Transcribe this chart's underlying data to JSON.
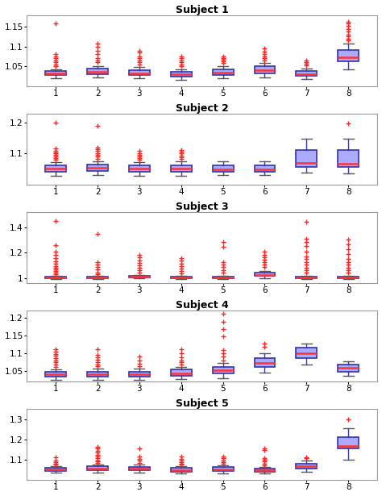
{
  "box_facecolor": "#aaaaff",
  "box_edgecolor": "#3333aa",
  "median_color": "#ff3333",
  "whisker_color": "#555555",
  "flier_color": "#ff2222",
  "subject_data": [
    {
      "label": "Subject 1",
      "ylim": [
        1.0,
        1.18
      ],
      "yticks": [
        1.05,
        1.1,
        1.15
      ],
      "ytick_labels": [
        "1.05",
        "1.1",
        "1.15"
      ],
      "groups": [
        {
          "q1": 1.028,
          "median": 1.032,
          "q3": 1.038,
          "whislo": 1.02,
          "whishi": 1.042,
          "fliers": [
            1.05,
            1.055,
            1.06,
            1.065,
            1.07,
            1.075,
            1.08,
            1.158
          ]
        },
        {
          "q1": 1.03,
          "median": 1.036,
          "q3": 1.044,
          "whislo": 1.022,
          "whishi": 1.05,
          "fliers": [
            1.06,
            1.065,
            1.07,
            1.08,
            1.09,
            1.1,
            1.108
          ]
        },
        {
          "q1": 1.027,
          "median": 1.032,
          "q3": 1.04,
          "whislo": 1.019,
          "whishi": 1.048,
          "fliers": [
            1.055,
            1.06,
            1.065,
            1.07,
            1.075,
            1.085,
            1.09
          ]
        },
        {
          "q1": 1.024,
          "median": 1.029,
          "q3": 1.036,
          "whislo": 1.016,
          "whishi": 1.042,
          "fliers": [
            1.05,
            1.055,
            1.06,
            1.065,
            1.07,
            1.075
          ]
        },
        {
          "q1": 1.027,
          "median": 1.033,
          "q3": 1.042,
          "whislo": 1.019,
          "whishi": 1.05,
          "fliers": [
            1.058,
            1.062,
            1.066,
            1.07,
            1.074
          ]
        },
        {
          "q1": 1.032,
          "median": 1.04,
          "q3": 1.05,
          "whislo": 1.022,
          "whishi": 1.058,
          "fliers": [
            1.065,
            1.07,
            1.075,
            1.08,
            1.088,
            1.095
          ]
        },
        {
          "q1": 1.025,
          "median": 1.03,
          "q3": 1.038,
          "whislo": 1.018,
          "whishi": 1.045,
          "fliers": [
            1.052,
            1.056,
            1.06,
            1.065
          ]
        },
        {
          "q1": 1.062,
          "median": 1.072,
          "q3": 1.092,
          "whislo": 1.042,
          "whishi": 1.108,
          "fliers": [
            1.115,
            1.12,
            1.125,
            1.13,
            1.138,
            1.145,
            1.152,
            1.158,
            1.162
          ]
        }
      ]
    },
    {
      "label": "Subject 2",
      "ylim": [
        1.0,
        1.23
      ],
      "yticks": [
        1.1,
        1.2
      ],
      "ytick_labels": [
        "1.1",
        "1.2"
      ],
      "groups": [
        {
          "q1": 1.042,
          "median": 1.052,
          "q3": 1.062,
          "whislo": 1.028,
          "whishi": 1.072,
          "fliers": [
            1.08,
            1.085,
            1.09,
            1.095,
            1.1,
            1.105,
            1.11,
            1.118,
            1.2
          ]
        },
        {
          "q1": 1.044,
          "median": 1.054,
          "q3": 1.064,
          "whislo": 1.03,
          "whishi": 1.076,
          "fliers": [
            1.084,
            1.09,
            1.096,
            1.102,
            1.108,
            1.114,
            1.12,
            1.19
          ]
        },
        {
          "q1": 1.042,
          "median": 1.052,
          "q3": 1.062,
          "whislo": 1.028,
          "whishi": 1.072,
          "fliers": [
            1.08,
            1.085,
            1.09,
            1.095,
            1.1,
            1.108
          ]
        },
        {
          "q1": 1.042,
          "median": 1.052,
          "q3": 1.062,
          "whislo": 1.028,
          "whishi": 1.074,
          "fliers": [
            1.082,
            1.088,
            1.094,
            1.1,
            1.106,
            1.112
          ]
        },
        {
          "q1": 1.04,
          "median": 1.05,
          "q3": 1.062,
          "whislo": 1.03,
          "whishi": 1.074,
          "fliers": []
        },
        {
          "q1": 1.04,
          "median": 1.05,
          "q3": 1.062,
          "whislo": 1.03,
          "whishi": 1.074,
          "fliers": []
        },
        {
          "q1": 1.058,
          "median": 1.07,
          "q3": 1.112,
          "whislo": 1.038,
          "whishi": 1.148,
          "fliers": []
        },
        {
          "q1": 1.056,
          "median": 1.068,
          "q3": 1.112,
          "whislo": 1.036,
          "whishi": 1.148,
          "fliers": [
            1.198
          ]
        }
      ]
    },
    {
      "label": "Subject 3",
      "ylim": [
        0.96,
        1.52
      ],
      "yticks": [
        1.0,
        1.2,
        1.4
      ],
      "ytick_labels": [
        "1",
        "1.2",
        "1.4"
      ],
      "groups": [
        {
          "q1": 1.0,
          "median": 1.004,
          "q3": 1.01,
          "whislo": 0.994,
          "whishi": 1.018,
          "fliers": [
            1.03,
            1.04,
            1.055,
            1.068,
            1.08,
            1.095,
            1.11,
            1.13,
            1.155,
            1.18,
            1.21,
            1.26,
            1.45
          ]
        },
        {
          "q1": 0.999,
          "median": 1.003,
          "q3": 1.008,
          "whislo": 0.993,
          "whishi": 1.015,
          "fliers": [
            1.03,
            1.045,
            1.065,
            1.085,
            1.105,
            1.125,
            1.35
          ]
        },
        {
          "q1": 1.002,
          "median": 1.008,
          "q3": 1.016,
          "whislo": 0.996,
          "whishi": 1.022,
          "fliers": [
            1.04,
            1.06,
            1.08,
            1.1,
            1.12,
            1.14,
            1.165,
            1.185
          ]
        },
        {
          "q1": 1.0,
          "median": 1.006,
          "q3": 1.013,
          "whislo": 0.994,
          "whishi": 1.02,
          "fliers": [
            1.035,
            1.055,
            1.075,
            1.095,
            1.115,
            1.135,
            1.155
          ]
        },
        {
          "q1": 0.999,
          "median": 1.004,
          "q3": 1.01,
          "whislo": 0.993,
          "whishi": 1.018,
          "fliers": [
            1.04,
            1.062,
            1.084,
            1.106,
            1.128,
            1.245,
            1.285
          ]
        },
        {
          "q1": 1.014,
          "median": 1.024,
          "q3": 1.044,
          "whislo": 1.0,
          "whishi": 1.058,
          "fliers": [
            1.085,
            1.105,
            1.125,
            1.145,
            1.165,
            1.185,
            1.205
          ]
        },
        {
          "q1": 1.0,
          "median": 1.004,
          "q3": 1.01,
          "whislo": 0.992,
          "whishi": 1.018,
          "fliers": [
            1.04,
            1.06,
            1.082,
            1.104,
            1.125,
            1.148,
            1.17,
            1.205,
            1.25,
            1.285,
            1.31,
            1.445
          ]
        },
        {
          "q1": 0.999,
          "median": 1.003,
          "q3": 1.01,
          "whislo": 0.992,
          "whishi": 1.018,
          "fliers": [
            1.04,
            1.06,
            1.082,
            1.104,
            1.128,
            1.152,
            1.188,
            1.225,
            1.265,
            1.305
          ]
        }
      ]
    },
    {
      "label": "Subject 4",
      "ylim": [
        1.02,
        1.22
      ],
      "yticks": [
        1.05,
        1.1,
        1.15,
        1.2
      ],
      "ytick_labels": [
        "1.05",
        "1.1",
        "1.15",
        "1.2"
      ],
      "groups": [
        {
          "q1": 1.033,
          "median": 1.04,
          "q3": 1.048,
          "whislo": 1.024,
          "whishi": 1.055,
          "fliers": [
            1.062,
            1.068,
            1.074,
            1.08,
            1.086,
            1.092,
            1.098,
            1.104,
            1.112
          ]
        },
        {
          "q1": 1.033,
          "median": 1.04,
          "q3": 1.048,
          "whislo": 1.024,
          "whishi": 1.056,
          "fliers": [
            1.063,
            1.069,
            1.075,
            1.081,
            1.088,
            1.095,
            1.11
          ]
        },
        {
          "q1": 1.033,
          "median": 1.04,
          "q3": 1.048,
          "whislo": 1.024,
          "whishi": 1.056,
          "fliers": [
            1.063,
            1.07,
            1.08,
            1.09
          ]
        },
        {
          "q1": 1.036,
          "median": 1.044,
          "q3": 1.054,
          "whislo": 1.026,
          "whishi": 1.06,
          "fliers": [
            1.068,
            1.074,
            1.08,
            1.088,
            1.1,
            1.112
          ]
        },
        {
          "q1": 1.042,
          "median": 1.052,
          "q3": 1.062,
          "whislo": 1.03,
          "whishi": 1.072,
          "fliers": [
            1.08,
            1.09,
            1.1,
            1.108,
            1.148,
            1.168,
            1.188,
            1.21
          ]
        },
        {
          "q1": 1.06,
          "median": 1.072,
          "q3": 1.086,
          "whislo": 1.046,
          "whishi": 1.1,
          "fliers": [
            1.118,
            1.128
          ]
        },
        {
          "q1": 1.085,
          "median": 1.1,
          "q3": 1.115,
          "whislo": 1.068,
          "whishi": 1.128,
          "fliers": []
        },
        {
          "q1": 1.048,
          "median": 1.058,
          "q3": 1.068,
          "whislo": 1.036,
          "whishi": 1.078,
          "fliers": []
        }
      ]
    },
    {
      "label": "Subject 5",
      "ylim": [
        1.0,
        1.35
      ],
      "yticks": [
        1.1,
        1.2,
        1.3
      ],
      "ytick_labels": [
        "1.1",
        "1.2",
        "1.3"
      ],
      "groups": [
        {
          "q1": 1.045,
          "median": 1.052,
          "q3": 1.06,
          "whislo": 1.036,
          "whishi": 1.068,
          "fliers": [
            1.075,
            1.082,
            1.088,
            1.095,
            1.112
          ]
        },
        {
          "q1": 1.05,
          "median": 1.058,
          "q3": 1.068,
          "whislo": 1.038,
          "whishi": 1.078,
          "fliers": [
            1.085,
            1.092,
            1.098,
            1.108,
            1.115,
            1.125,
            1.135,
            1.145,
            1.155,
            1.165
          ]
        },
        {
          "q1": 1.048,
          "median": 1.056,
          "q3": 1.066,
          "whislo": 1.036,
          "whishi": 1.076,
          "fliers": [
            1.085,
            1.095,
            1.105,
            1.115,
            1.158
          ]
        },
        {
          "q1": 1.042,
          "median": 1.05,
          "q3": 1.06,
          "whislo": 1.032,
          "whishi": 1.068,
          "fliers": [
            1.075,
            1.082,
            1.09,
            1.098,
            1.106,
            1.115
          ]
        },
        {
          "q1": 1.045,
          "median": 1.054,
          "q3": 1.064,
          "whislo": 1.034,
          "whishi": 1.074,
          "fliers": [
            1.082,
            1.09,
            1.098,
            1.108,
            1.118
          ]
        },
        {
          "q1": 1.042,
          "median": 1.05,
          "q3": 1.058,
          "whislo": 1.032,
          "whishi": 1.066,
          "fliers": [
            1.074,
            1.082,
            1.092,
            1.1,
            1.108,
            1.148,
            1.155
          ]
        },
        {
          "q1": 1.055,
          "median": 1.068,
          "q3": 1.082,
          "whislo": 1.04,
          "whishi": 1.098,
          "fliers": [
            1.108,
            1.112
          ]
        },
        {
          "q1": 1.155,
          "median": 1.168,
          "q3": 1.21,
          "whislo": 1.1,
          "whishi": 1.255,
          "fliers": [
            1.3
          ]
        }
      ]
    }
  ]
}
